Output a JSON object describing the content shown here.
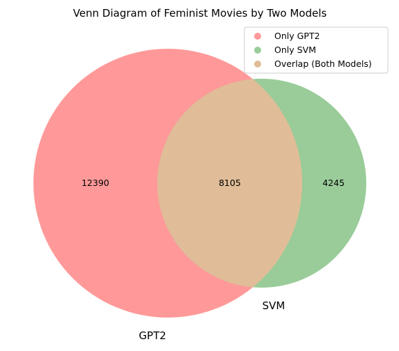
{
  "title": "Venn Diagram of Feminist Movies by Two Models",
  "sets": [
    {
      "name": "GPT2",
      "label": "GPT2",
      "color": "#ff9999"
    },
    {
      "name": "SVM",
      "label": "SVM",
      "color": "#99cc99"
    }
  ],
  "regions": {
    "only_gpt2": {
      "count": "12390",
      "color": "#ff9999"
    },
    "overlap": {
      "count": "8105",
      "color": "#e0bd98"
    },
    "only_svm": {
      "count": "4245",
      "color": "#99cc99"
    }
  },
  "legend": {
    "placement": "top-right",
    "items": [
      {
        "label": "Only GPT2",
        "color": "#ff9999"
      },
      {
        "label": "Only SVM",
        "color": "#99cc99"
      },
      {
        "label": "Overlap (Both Models)",
        "color": "#e0bd98"
      }
    ]
  }
}
